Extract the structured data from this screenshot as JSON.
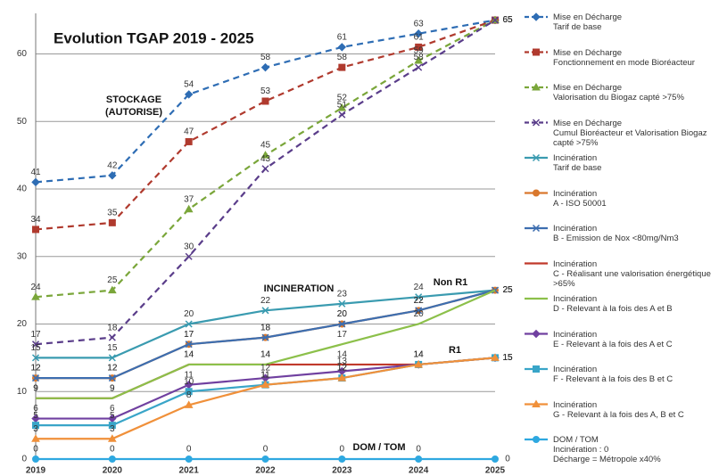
{
  "chart_data": {
    "type": "line",
    "title": "Evolution TGAP 2019 - 2025",
    "x": [
      "2019",
      "2020",
      "2021",
      "2022",
      "2023",
      "2024",
      "2025"
    ],
    "ylim": [
      0,
      66
    ],
    "yticks": [
      0,
      10,
      20,
      30,
      40,
      50,
      60
    ],
    "grid": true,
    "annotations": [
      "STOCKAGE\n(AUTORISE)",
      "INCINERATION",
      "Non R1",
      "R1",
      "DOM / TOM"
    ],
    "series": [
      {
        "name": "Mise en Décharge\nTarif de base",
        "color": "#2e6db4",
        "dash": true,
        "marker": "diamond",
        "values": [
          41,
          42,
          54,
          58,
          61,
          63,
          65
        ]
      },
      {
        "name": "Mise en Décharge\nFonctionnement en mode Bioréacteur",
        "color": "#b03a2e",
        "dash": true,
        "marker": "square",
        "values": [
          34,
          35,
          47,
          53,
          58,
          61,
          65
        ]
      },
      {
        "name": "Mise en Décharge\nValorisation du Biogaz capté >75%",
        "color": "#7aa63a",
        "dash": true,
        "marker": "triangle",
        "values": [
          24,
          25,
          37,
          45,
          52,
          59,
          65
        ]
      },
      {
        "name": "Mise en Décharge\nCumul Bioréacteur et Valorisation  Biogaz capté >75%",
        "color": "#5a3d8a",
        "dash": true,
        "marker": "x",
        "values": [
          17,
          18,
          30,
          43,
          51,
          58,
          65
        ]
      },
      {
        "name": "Incinération\nTarif de base",
        "color": "#3a9bb0",
        "dash": false,
        "marker": "x",
        "values": [
          15,
          15,
          20,
          22,
          23,
          24,
          25
        ]
      },
      {
        "name": "Incinération\nA - ISO 50001",
        "color": "#d9782d",
        "dash": false,
        "marker": "circle",
        "values": [
          12,
          12,
          17,
          18,
          20,
          22,
          25
        ]
      },
      {
        "name": "Incinération\nB - Emission de Nox <80mg/Nm3",
        "color": "#3d6eb0",
        "dash": false,
        "marker": "x",
        "values": [
          12,
          12,
          17,
          18,
          20,
          22,
          25
        ]
      },
      {
        "name": "Incinération\nC - Réalisant une valorisation énergétique >65%",
        "color": "#c0392b",
        "dash": false,
        "marker": "none",
        "values": [
          9,
          9,
          14,
          14,
          14,
          14,
          15
        ]
      },
      {
        "name": "Incinération\nD - Relevant à la fois des A et B",
        "color": "#8cc04a",
        "dash": false,
        "marker": "none",
        "values": [
          9,
          9,
          14,
          14,
          17,
          20,
          25
        ]
      },
      {
        "name": "Incinération\nE - Relevant à la fois des A et C",
        "color": "#7040a0",
        "dash": false,
        "marker": "diamond",
        "values": [
          6,
          6,
          11,
          12,
          13,
          14,
          15
        ]
      },
      {
        "name": "Incinération\nF - Relevant à la fois des B et C",
        "color": "#39a5c8",
        "dash": false,
        "marker": "square",
        "values": [
          5,
          5,
          10,
          11,
          12,
          14,
          15
        ]
      },
      {
        "name": "Incinération\nG - Relevant à la fois des A, B et C",
        "color": "#f0903a",
        "dash": false,
        "marker": "triangle",
        "values": [
          3,
          3,
          8,
          11,
          12,
          14,
          15
        ]
      },
      {
        "name": "DOM / TOM\nIncinération : 0\nDécharge = Métropole x40%",
        "color": "#2ea8e0",
        "dash": false,
        "marker": "circle",
        "values": [
          0,
          0,
          0,
          0,
          0,
          0,
          0
        ]
      }
    ]
  }
}
